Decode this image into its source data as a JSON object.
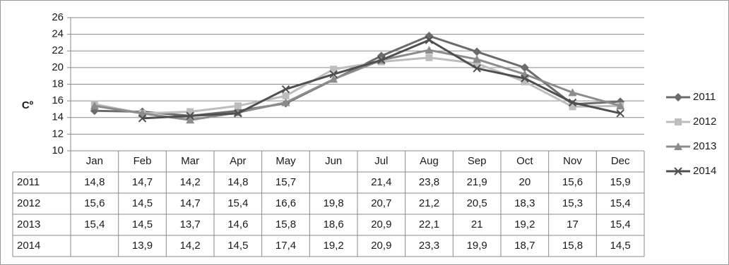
{
  "chart_data": {
    "type": "line",
    "title": "",
    "ylabel": "Cº",
    "xlabel": "",
    "ylim": [
      10,
      26
    ],
    "yticks": [
      10,
      12,
      14,
      16,
      18,
      20,
      22,
      24,
      26
    ],
    "grid": "horizontal",
    "legend_position": "right",
    "data_table": true,
    "categories": [
      "Jan",
      "Feb",
      "Mar",
      "Apr",
      "May",
      "Jun",
      "Jul",
      "Aug",
      "Sep",
      "Oct",
      "Nov",
      "Dec"
    ],
    "series": [
      {
        "name": "2011",
        "color": "#6b6b6b",
        "marker": "diamond",
        "values": [
          14.8,
          14.7,
          14.2,
          14.8,
          15.7,
          null,
          21.4,
          23.8,
          21.9,
          20,
          15.6,
          15.9
        ],
        "labels": [
          "14,8",
          "14,7",
          "14,2",
          "14,8",
          "15,7",
          "",
          "21,4",
          "23,8",
          "21,9",
          "20",
          "15,6",
          "15,9"
        ]
      },
      {
        "name": "2012",
        "color": "#bdbdbd",
        "marker": "square",
        "values": [
          15.6,
          14.5,
          14.7,
          15.4,
          16.6,
          19.8,
          20.7,
          21.2,
          20.5,
          18.3,
          15.3,
          15.4
        ],
        "labels": [
          "15,6",
          "14,5",
          "14,7",
          "15,4",
          "16,6",
          "19,8",
          "20,7",
          "21,2",
          "20,5",
          "18,3",
          "15,3",
          "15,4"
        ]
      },
      {
        "name": "2013",
        "color": "#8c8c8c",
        "marker": "triangle",
        "values": [
          15.4,
          14.5,
          13.7,
          14.6,
          15.8,
          18.6,
          20.9,
          22.1,
          21,
          19.2,
          17,
          15.4
        ],
        "labels": [
          "15,4",
          "14,5",
          "13,7",
          "14,6",
          "15,8",
          "18,6",
          "20,9",
          "22,1",
          "21",
          "19,2",
          "17",
          "15,4"
        ]
      },
      {
        "name": "2014",
        "color": "#4f4f4f",
        "marker": "x",
        "values": [
          null,
          13.9,
          14.2,
          14.5,
          17.4,
          19.2,
          20.9,
          23.3,
          19.9,
          18.7,
          15.8,
          14.5
        ],
        "labels": [
          "",
          "13,9",
          "14,2",
          "14,5",
          "17,4",
          "19,2",
          "20,9",
          "23,3",
          "19,9",
          "18,7",
          "15,8",
          "14,5"
        ]
      }
    ]
  }
}
